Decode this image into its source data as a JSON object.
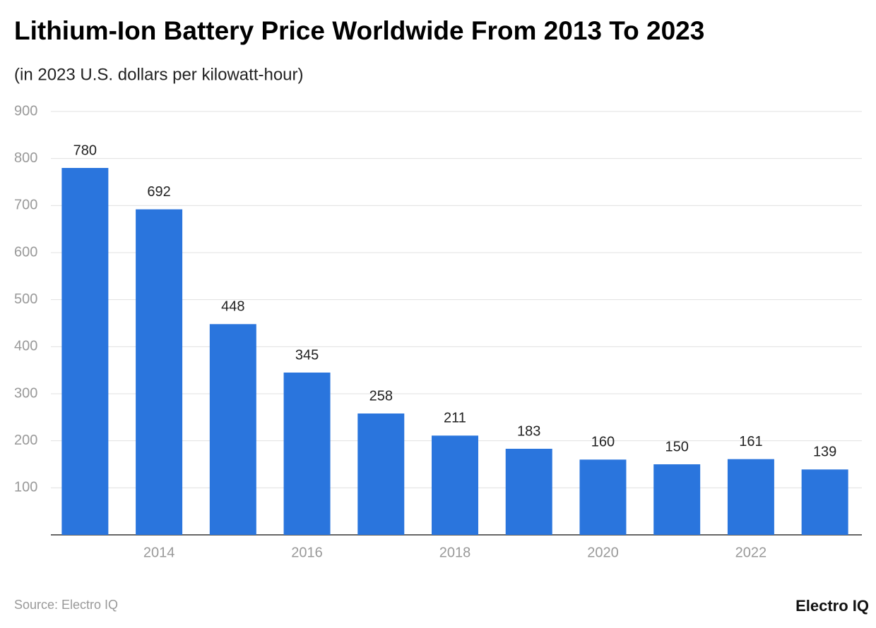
{
  "chart_data": {
    "type": "bar",
    "title": "Lithium-Ion Battery Price Worldwide From 2013 To 2023",
    "subtitle": "(in 2023 U.S. dollars per kilowatt-hour)",
    "categories": [
      null,
      "2014",
      null,
      "2016",
      null,
      "2018",
      null,
      "2020",
      null,
      "2022",
      null
    ],
    "values": [
      780,
      692,
      448,
      345,
      258,
      211,
      183,
      160,
      150,
      161,
      139
    ],
    "color": "#2a75dd",
    "ylim": [
      0,
      900
    ],
    "yticks": [
      100,
      200,
      300,
      400,
      500,
      600,
      700,
      800,
      900
    ],
    "grid": true,
    "source": "Source: Electro IQ",
    "logo": "Electro IQ"
  }
}
